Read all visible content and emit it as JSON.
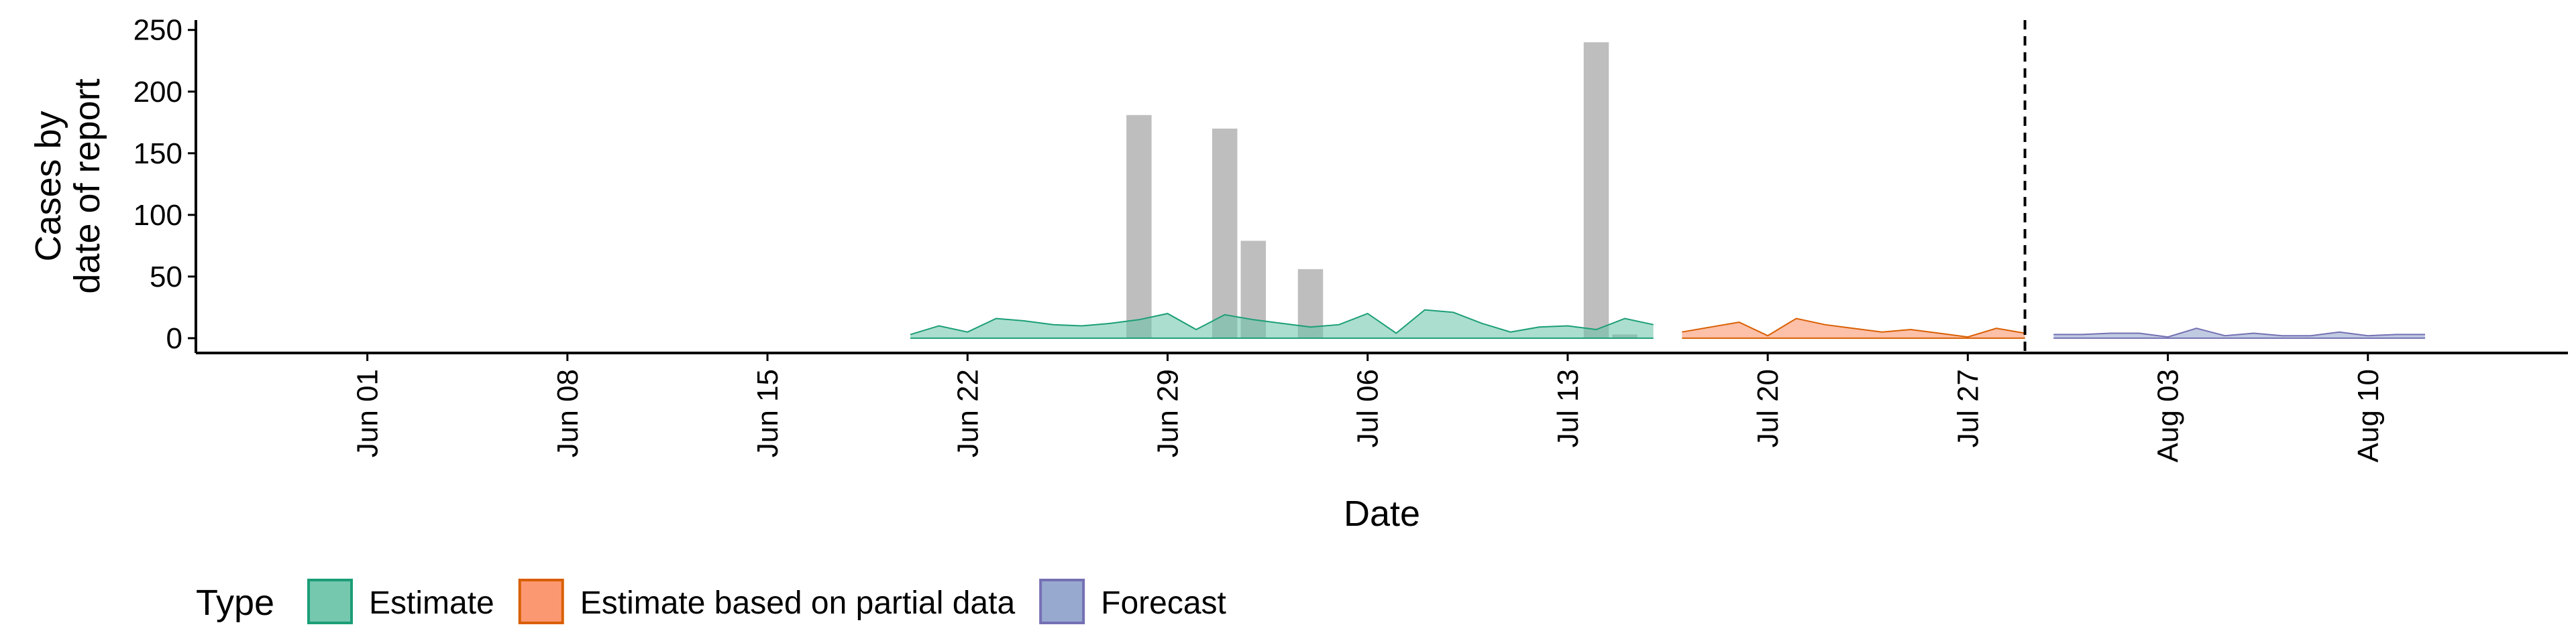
{
  "chart_data": {
    "type": "bar",
    "title": "",
    "xlabel": "Date",
    "ylabel_lines": [
      "Cases by",
      "date of report"
    ],
    "y_ticks": [
      0,
      50,
      100,
      150,
      200,
      250
    ],
    "ylim": [
      -12,
      258
    ],
    "x_domain": [
      "2020-05-26",
      "2020-08-17"
    ],
    "x_ticks": [
      {
        "date": "2020-06-01",
        "label": "Jun 01"
      },
      {
        "date": "2020-06-08",
        "label": "Jun 08"
      },
      {
        "date": "2020-06-15",
        "label": "Jun 15"
      },
      {
        "date": "2020-06-22",
        "label": "Jun 22"
      },
      {
        "date": "2020-06-29",
        "label": "Jun 29"
      },
      {
        "date": "2020-07-06",
        "label": "Jul 06"
      },
      {
        "date": "2020-07-13",
        "label": "Jul 13"
      },
      {
        "date": "2020-07-20",
        "label": "Jul 20"
      },
      {
        "date": "2020-07-27",
        "label": "Jul 27"
      },
      {
        "date": "2020-08-03",
        "label": "Aug 03"
      },
      {
        "date": "2020-08-10",
        "label": "Aug 10"
      }
    ],
    "reported_cases": {
      "color": "#bebebe",
      "points": [
        {
          "date": "2020-06-28",
          "value": 181
        },
        {
          "date": "2020-07-01",
          "value": 170
        },
        {
          "date": "2020-07-02",
          "value": 79
        },
        {
          "date": "2020-07-04",
          "value": 56
        },
        {
          "date": "2020-07-14",
          "value": 240
        },
        {
          "date": "2020-07-15",
          "value": 3
        }
      ]
    },
    "vline_date": "2020-07-29",
    "series": [
      {
        "name": "Estimate",
        "fill": "#66c2a5",
        "stroke": "#1b9e77",
        "x": [
          "2020-06-20",
          "2020-06-21",
          "2020-06-22",
          "2020-06-23",
          "2020-06-24",
          "2020-06-25",
          "2020-06-26",
          "2020-06-27",
          "2020-06-28",
          "2020-06-29",
          "2020-06-30",
          "2020-07-01",
          "2020-07-02",
          "2020-07-03",
          "2020-07-04",
          "2020-07-05",
          "2020-07-06",
          "2020-07-07",
          "2020-07-08",
          "2020-07-09",
          "2020-07-10",
          "2020-07-11",
          "2020-07-12",
          "2020-07-13",
          "2020-07-14",
          "2020-07-15",
          "2020-07-16"
        ],
        "upper": [
          3,
          10,
          5,
          16,
          14,
          11,
          10,
          12,
          15,
          20,
          7,
          19,
          15,
          12,
          9,
          11,
          20,
          4,
          23,
          21,
          12,
          5,
          9,
          10,
          7,
          16,
          11
        ],
        "lower": [
          0,
          0,
          0,
          0,
          0,
          0,
          0,
          0,
          0,
          0,
          0,
          0,
          0,
          0,
          0,
          0,
          0,
          0,
          0,
          0,
          0,
          0,
          0,
          0,
          0,
          0,
          0
        ]
      },
      {
        "name": "Estimate based on partial data",
        "fill": "#fc8d62",
        "stroke": "#d95f02",
        "x": [
          "2020-07-17",
          "2020-07-18",
          "2020-07-19",
          "2020-07-20",
          "2020-07-21",
          "2020-07-22",
          "2020-07-23",
          "2020-07-24",
          "2020-07-25",
          "2020-07-26",
          "2020-07-27",
          "2020-07-28",
          "2020-07-29"
        ],
        "upper": [
          5,
          9,
          13,
          2,
          16,
          11,
          8,
          5,
          7,
          4,
          1,
          8,
          4
        ],
        "lower": [
          0,
          0,
          0,
          0,
          0,
          0,
          0,
          0,
          0,
          0,
          0,
          0,
          0
        ]
      },
      {
        "name": "Forecast",
        "fill": "#8da0cb",
        "stroke": "#7570b3",
        "x": [
          "2020-07-30",
          "2020-07-31",
          "2020-08-01",
          "2020-08-02",
          "2020-08-03",
          "2020-08-04",
          "2020-08-05",
          "2020-08-06",
          "2020-08-07",
          "2020-08-08",
          "2020-08-09",
          "2020-08-10",
          "2020-08-11",
          "2020-08-12"
        ],
        "upper": [
          3,
          3,
          4,
          4,
          1,
          8,
          2,
          4,
          2,
          2,
          5,
          2,
          3,
          3
        ],
        "lower": [
          0,
          0,
          0,
          0,
          0,
          0,
          0,
          0,
          0,
          0,
          0,
          0,
          0,
          0
        ]
      }
    ],
    "legend": {
      "title": "Type",
      "position": "bottom-left",
      "items": [
        {
          "label": "Estimate",
          "fill": "#66c2a5",
          "stroke": "#1b9e77"
        },
        {
          "label": "Estimate based on partial data",
          "fill": "#fc8d62",
          "stroke": "#d95f02"
        },
        {
          "label": "Forecast",
          "fill": "#8da0cb",
          "stroke": "#7570b3"
        }
      ]
    },
    "grid": false
  }
}
